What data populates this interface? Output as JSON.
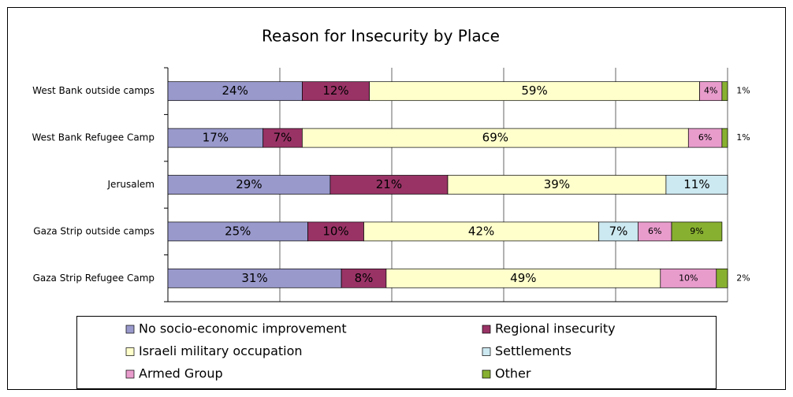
{
  "chart_data": {
    "type": "stacked_barh",
    "title": "Reason for Insecurity by Place",
    "categories": [
      "West Bank outside camps",
      "West Bank Refugee Camp",
      "Jerusalem",
      "Gaza Strip outside camps",
      "Gaza Strip Refugee Camp"
    ],
    "series": [
      {
        "name": "No socio-economic improvement",
        "color": "#9999cc",
        "values": [
          24,
          17,
          29,
          25,
          31
        ],
        "value_labels": [
          "24%",
          "17%",
          "29%",
          "25%",
          "31%"
        ]
      },
      {
        "name": "Regional insecurity",
        "color": "#993366",
        "values": [
          12,
          7,
          21,
          10,
          8
        ],
        "value_labels": [
          "12%",
          "7%",
          "21%",
          "10%",
          "8%"
        ]
      },
      {
        "name": "Israeli military occupation",
        "color": "#ffffcc",
        "values": [
          59,
          69,
          39,
          42,
          49
        ],
        "value_labels": [
          "59%",
          "69%",
          "39%",
          "42%",
          "49%"
        ]
      },
      {
        "name": "Settlements",
        "color": "#cce8f0",
        "values": [
          null,
          null,
          11,
          7,
          null
        ],
        "value_labels": [
          null,
          null,
          "11%",
          "7%",
          null
        ]
      },
      {
        "name": "Armed Group",
        "color": "#e89ccc",
        "values": [
          4,
          6,
          null,
          6,
          10
        ],
        "value_labels": [
          "4%",
          "6%",
          null,
          "6%",
          "10%"
        ]
      },
      {
        "name": "Other",
        "color": "#88b030",
        "values": [
          1,
          1,
          null,
          9,
          2
        ],
        "value_labels": [
          "1%",
          "1%",
          null,
          "9%",
          "2%"
        ]
      }
    ],
    "xlim": [
      0,
      100
    ],
    "xticks": [
      0,
      20,
      40,
      60,
      80,
      100
    ],
    "grid": true
  }
}
